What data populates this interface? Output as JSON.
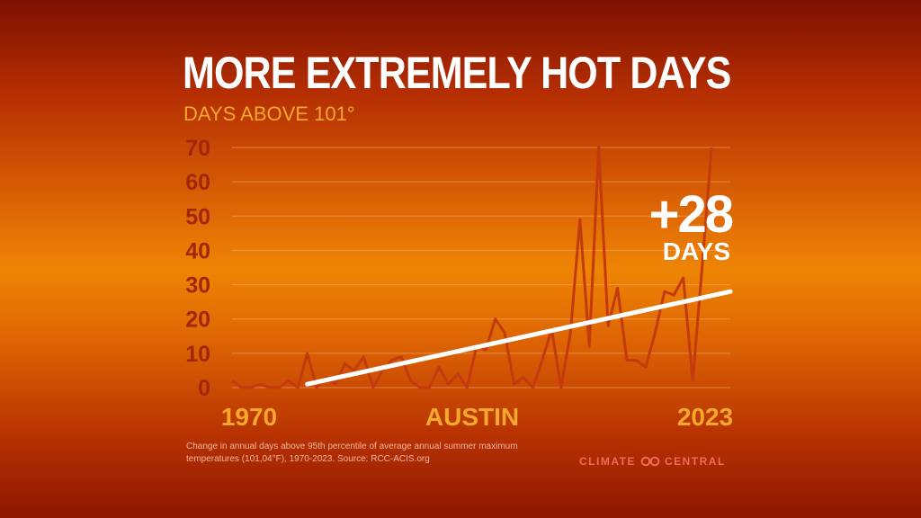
{
  "title": "MORE EXTREMELY HOT DAYS",
  "subtitle": "DAYS ABOVE 101°",
  "caption": "Change in annual days above 95th percentile of average annual summer maximum temperatures (101,04°F), 1970-2023. Source: RCC-ACIS.org",
  "logo": {
    "left": "CLIMATE",
    "right": "CENTRAL",
    "icon": "climate-central-infinity-icon"
  },
  "colors": {
    "line": "#c43a0f",
    "trend": "#ffffff",
    "ticks": "#a2260a",
    "year_label": "#f5a92c",
    "grid": "#f7b27a"
  },
  "chart_data": {
    "type": "line",
    "title": "DAYS ABOVE 101°",
    "location_label": "AUSTIN",
    "x_start_label": "1970",
    "x_end_label": "2023",
    "ylim": [
      0,
      70
    ],
    "yticks": [
      0,
      10,
      20,
      30,
      40,
      50,
      60,
      70
    ],
    "grid": true,
    "series": [
      {
        "x": [
          1970,
          1971,
          1972,
          1973,
          1974,
          1975,
          1976,
          1977,
          1978,
          1979,
          1980,
          1981,
          1982,
          1983,
          1984,
          1985,
          1986,
          1987,
          1988,
          1989,
          1990,
          1991,
          1992,
          1993,
          1994,
          1995,
          1996,
          1997,
          1998,
          1999,
          2000,
          2001,
          2002,
          2003,
          2004,
          2005,
          2006,
          2007,
          2008,
          2009,
          2010,
          2011,
          2012,
          2013,
          2014,
          2015,
          2016,
          2017,
          2018,
          2019,
          2020,
          2021,
          2022,
          2023
        ],
        "values": [
          2,
          0,
          0,
          1,
          0,
          0,
          2,
          0,
          10,
          0,
          3,
          1,
          7,
          5,
          9,
          0,
          5,
          8,
          9,
          2,
          0,
          0,
          6,
          1,
          4,
          0,
          12,
          11,
          20,
          16,
          1,
          3,
          0,
          8,
          17,
          0,
          16,
          49,
          12,
          70,
          18,
          29,
          8,
          8,
          6,
          16,
          28,
          27,
          32,
          2,
          35,
          70,
          null,
          null
        ]
      }
    ],
    "trend": {
      "x": [
        1978,
        2023
      ],
      "values": [
        1,
        28
      ]
    },
    "annotation": {
      "value": "+28",
      "unit": "DAYS"
    }
  }
}
